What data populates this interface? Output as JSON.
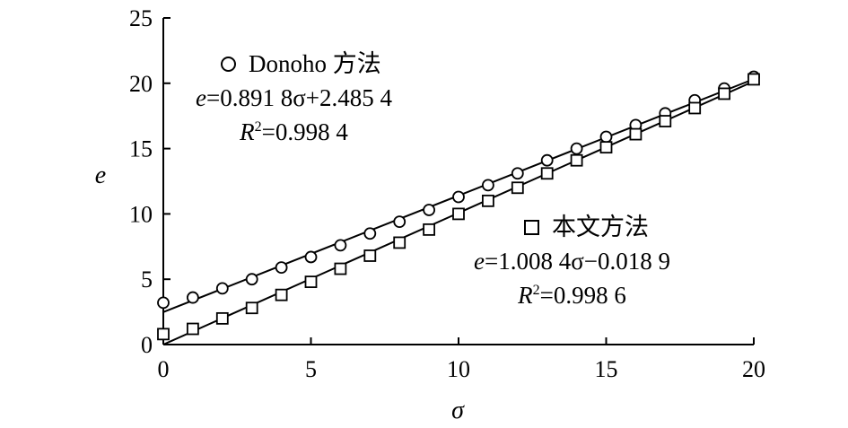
{
  "chart_data": {
    "type": "scatter",
    "xlabel": "σ",
    "ylabel": "e",
    "xlim": [
      0,
      20
    ],
    "ylim": [
      0,
      25
    ],
    "x_ticks": [
      "0",
      "5",
      "10",
      "15",
      "20"
    ],
    "y_ticks": [
      "0",
      "5",
      "10",
      "15",
      "20",
      "25"
    ],
    "series": [
      {
        "name": "Donoho 方法",
        "marker": "circle",
        "equation": "=0.891 8σ+2.485 4",
        "r2": "=0.998 4",
        "fit": {
          "slope": 0.8918,
          "intercept": 2.4854
        },
        "x": [
          0,
          1,
          2,
          3,
          4,
          5,
          6,
          7,
          8,
          9,
          10,
          11,
          12,
          13,
          14,
          15,
          16,
          17,
          18,
          19,
          20
        ],
        "y": [
          3.2,
          3.6,
          4.3,
          5.0,
          5.9,
          6.7,
          7.6,
          8.5,
          9.4,
          10.3,
          11.3,
          12.2,
          13.1,
          14.1,
          15.0,
          15.9,
          16.8,
          17.7,
          18.7,
          19.6,
          20.5
        ]
      },
      {
        "name": "本文方法",
        "marker": "square",
        "equation": "=1.008 4σ−0.018 9",
        "r2": "=0.998 6",
        "fit": {
          "slope": 1.0084,
          "intercept": -0.0189
        },
        "x": [
          0,
          1,
          2,
          3,
          4,
          5,
          6,
          7,
          8,
          9,
          10,
          11,
          12,
          13,
          14,
          15,
          16,
          17,
          18,
          19,
          20
        ],
        "y": [
          0.8,
          1.2,
          2.0,
          2.8,
          3.8,
          4.8,
          5.8,
          6.8,
          7.8,
          8.8,
          10.0,
          11.0,
          12.0,
          13.1,
          14.1,
          15.1,
          16.1,
          17.1,
          18.1,
          19.2,
          20.3
        ]
      }
    ]
  },
  "legend": {
    "equation_var": "e",
    "r_symbol": "R",
    "r_power": "2"
  }
}
